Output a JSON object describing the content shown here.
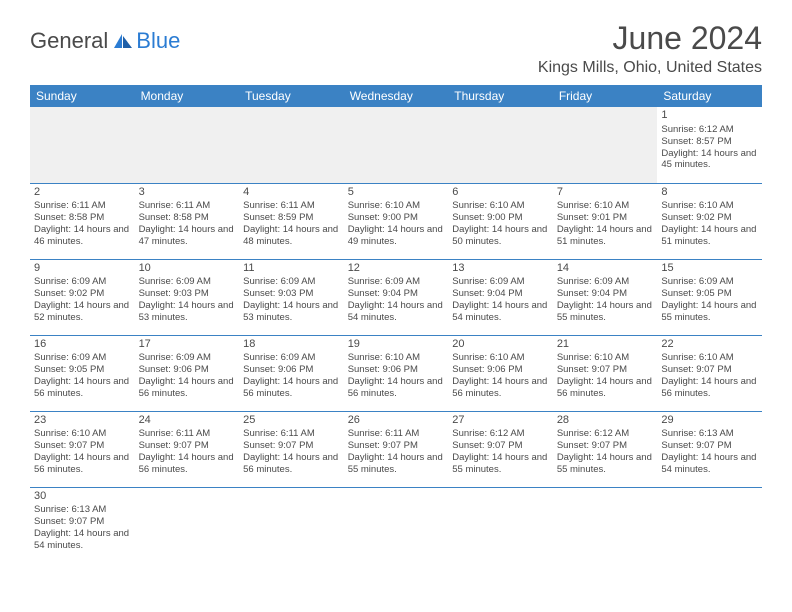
{
  "logo": {
    "text_general": "General",
    "text_blue": "Blue",
    "icon_fill": "#2b7cd3",
    "general_color": "#4a4a4a",
    "blue_color": "#2b7cd3"
  },
  "title": "June 2024",
  "location": "Kings Mills, Ohio, United States",
  "colors": {
    "header_bg": "#3b82c4",
    "header_text": "#ffffff",
    "border": "#3b82c4",
    "text": "#4a4a4a",
    "empty_bg": "#f0f0f0",
    "page_bg": "#ffffff"
  },
  "day_headers": [
    "Sunday",
    "Monday",
    "Tuesday",
    "Wednesday",
    "Thursday",
    "Friday",
    "Saturday"
  ],
  "weeks": [
    [
      null,
      null,
      null,
      null,
      null,
      null,
      {
        "n": "1",
        "sr": "6:12 AM",
        "ss": "8:57 PM",
        "dl": "14 hours and 45 minutes."
      }
    ],
    [
      {
        "n": "2",
        "sr": "6:11 AM",
        "ss": "8:58 PM",
        "dl": "14 hours and 46 minutes."
      },
      {
        "n": "3",
        "sr": "6:11 AM",
        "ss": "8:58 PM",
        "dl": "14 hours and 47 minutes."
      },
      {
        "n": "4",
        "sr": "6:11 AM",
        "ss": "8:59 PM",
        "dl": "14 hours and 48 minutes."
      },
      {
        "n": "5",
        "sr": "6:10 AM",
        "ss": "9:00 PM",
        "dl": "14 hours and 49 minutes."
      },
      {
        "n": "6",
        "sr": "6:10 AM",
        "ss": "9:00 PM",
        "dl": "14 hours and 50 minutes."
      },
      {
        "n": "7",
        "sr": "6:10 AM",
        "ss": "9:01 PM",
        "dl": "14 hours and 51 minutes."
      },
      {
        "n": "8",
        "sr": "6:10 AM",
        "ss": "9:02 PM",
        "dl": "14 hours and 51 minutes."
      }
    ],
    [
      {
        "n": "9",
        "sr": "6:09 AM",
        "ss": "9:02 PM",
        "dl": "14 hours and 52 minutes."
      },
      {
        "n": "10",
        "sr": "6:09 AM",
        "ss": "9:03 PM",
        "dl": "14 hours and 53 minutes."
      },
      {
        "n": "11",
        "sr": "6:09 AM",
        "ss": "9:03 PM",
        "dl": "14 hours and 53 minutes."
      },
      {
        "n": "12",
        "sr": "6:09 AM",
        "ss": "9:04 PM",
        "dl": "14 hours and 54 minutes."
      },
      {
        "n": "13",
        "sr": "6:09 AM",
        "ss": "9:04 PM",
        "dl": "14 hours and 54 minutes."
      },
      {
        "n": "14",
        "sr": "6:09 AM",
        "ss": "9:04 PM",
        "dl": "14 hours and 55 minutes."
      },
      {
        "n": "15",
        "sr": "6:09 AM",
        "ss": "9:05 PM",
        "dl": "14 hours and 55 minutes."
      }
    ],
    [
      {
        "n": "16",
        "sr": "6:09 AM",
        "ss": "9:05 PM",
        "dl": "14 hours and 56 minutes."
      },
      {
        "n": "17",
        "sr": "6:09 AM",
        "ss": "9:06 PM",
        "dl": "14 hours and 56 minutes."
      },
      {
        "n": "18",
        "sr": "6:09 AM",
        "ss": "9:06 PM",
        "dl": "14 hours and 56 minutes."
      },
      {
        "n": "19",
        "sr": "6:10 AM",
        "ss": "9:06 PM",
        "dl": "14 hours and 56 minutes."
      },
      {
        "n": "20",
        "sr": "6:10 AM",
        "ss": "9:06 PM",
        "dl": "14 hours and 56 minutes."
      },
      {
        "n": "21",
        "sr": "6:10 AM",
        "ss": "9:07 PM",
        "dl": "14 hours and 56 minutes."
      },
      {
        "n": "22",
        "sr": "6:10 AM",
        "ss": "9:07 PM",
        "dl": "14 hours and 56 minutes."
      }
    ],
    [
      {
        "n": "23",
        "sr": "6:10 AM",
        "ss": "9:07 PM",
        "dl": "14 hours and 56 minutes."
      },
      {
        "n": "24",
        "sr": "6:11 AM",
        "ss": "9:07 PM",
        "dl": "14 hours and 56 minutes."
      },
      {
        "n": "25",
        "sr": "6:11 AM",
        "ss": "9:07 PM",
        "dl": "14 hours and 56 minutes."
      },
      {
        "n": "26",
        "sr": "6:11 AM",
        "ss": "9:07 PM",
        "dl": "14 hours and 55 minutes."
      },
      {
        "n": "27",
        "sr": "6:12 AM",
        "ss": "9:07 PM",
        "dl": "14 hours and 55 minutes."
      },
      {
        "n": "28",
        "sr": "6:12 AM",
        "ss": "9:07 PM",
        "dl": "14 hours and 55 minutes."
      },
      {
        "n": "29",
        "sr": "6:13 AM",
        "ss": "9:07 PM",
        "dl": "14 hours and 54 minutes."
      }
    ],
    [
      {
        "n": "30",
        "sr": "6:13 AM",
        "ss": "9:07 PM",
        "dl": "14 hours and 54 minutes."
      },
      null,
      null,
      null,
      null,
      null,
      null
    ]
  ],
  "labels": {
    "sunrise": "Sunrise:",
    "sunset": "Sunset:",
    "daylight": "Daylight:"
  }
}
